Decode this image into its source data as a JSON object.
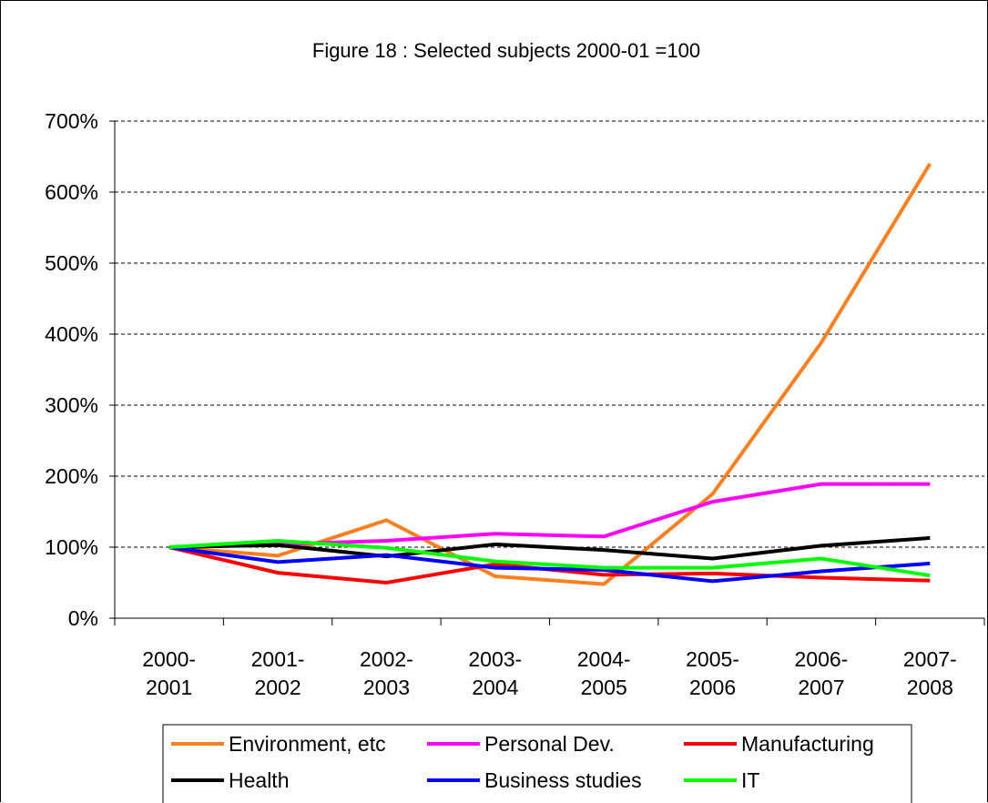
{
  "chart_data": {
    "type": "line",
    "title": "Figure 18 : Selected subjects 2000-01 =100",
    "xlabel": "",
    "ylabel": "",
    "categories": [
      [
        "2000-",
        "2001"
      ],
      [
        "2001-",
        "2002"
      ],
      [
        "2002-",
        "2003"
      ],
      [
        "2003-",
        "2004"
      ],
      [
        "2004-",
        "2005"
      ],
      [
        "2005-",
        "2006"
      ],
      [
        "2006-",
        "2007"
      ],
      [
        "2007-",
        "2008"
      ]
    ],
    "y_ticks": [
      "0%",
      "100%",
      "200%",
      "300%",
      "400%",
      "500%",
      "600%",
      "700%"
    ],
    "ylim": [
      0,
      700
    ],
    "y_unit": "%",
    "grid": "horizontal dashed",
    "legend_position": "bottom",
    "series": [
      {
        "name": "Environment, etc",
        "color": "#ff7f1e",
        "values": [
          100,
          88,
          138,
          59,
          48,
          175,
          388,
          640
        ]
      },
      {
        "name": "Personal Dev.",
        "color": "#ff00ff",
        "values": [
          100,
          104,
          109,
          119,
          115,
          164,
          189,
          189
        ]
      },
      {
        "name": "Manufacturing",
        "color": "#ff0000",
        "values": [
          100,
          64,
          50,
          76,
          61,
          63,
          57,
          53
        ]
      },
      {
        "name": "Health",
        "color": "#000000",
        "values": [
          100,
          103,
          87,
          104,
          96,
          84,
          102,
          113
        ]
      },
      {
        "name": "Business studies",
        "color": "#0000ff",
        "values": [
          100,
          79,
          89,
          71,
          68,
          52,
          66,
          77
        ]
      },
      {
        "name": "IT",
        "color": "#00ff00",
        "values": [
          100,
          109,
          99,
          80,
          71,
          71,
          84,
          60
        ]
      }
    ]
  }
}
